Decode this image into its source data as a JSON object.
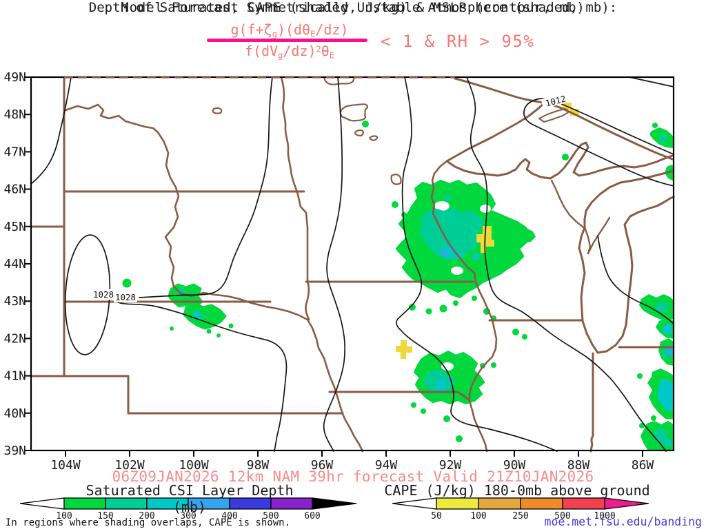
{
  "header": {
    "title": "Depth of Saturated, Symmetrically Unstable Atmosphere (shaded, mb):",
    "formula": {
      "numerator": {
        "p0": "g(f+ζ",
        "s0": "g",
        "p1": ")(dθ",
        "s1": "E",
        "p2": "/dz)"
      },
      "denominator": {
        "p0": "f(dV",
        "s0": "g",
        "p1": "/dz)",
        "sup": "2",
        "p2": "θ",
        "s1": "E"
      },
      "condition": "< 1 & RH > 95%"
    },
    "subtitle": "Model Forecast CAPE (shaded, J/kg) & MSLP (contour, mb)"
  },
  "map": {
    "lat_labels": [
      "49N",
      "48N",
      "47N",
      "46N",
      "45N",
      "44N",
      "43N",
      "42N",
      "41N",
      "40N",
      "39N"
    ],
    "lon_labels": [
      "104W",
      "102W",
      "100W",
      "98W",
      "96W",
      "94W",
      "92W",
      "90W",
      "88W",
      "86W"
    ],
    "contour_labels": [
      {
        "text": "1028"
      },
      {
        "text": "1028"
      },
      {
        "text": "1012"
      }
    ]
  },
  "legend": {
    "csi": {
      "title": "Saturated CSI Layer Depth (mb)",
      "tick_labels": [
        "100",
        "150",
        "200",
        "300",
        "400",
        "500",
        "600"
      ],
      "colors": [
        "#00D83E",
        "#00CC96",
        "#00C8C8",
        "#35A4EF",
        "#3A3ADF",
        "#8823CC"
      ],
      "end_arrow_color": "#000000"
    },
    "cape": {
      "title": "CAPE (J/kg) 180-0mb above ground",
      "tick_labels": [
        "50",
        "100",
        "250",
        "500",
        "1000"
      ],
      "colors": [
        "#EDE93F",
        "#E3A93C",
        "#EE8A28",
        "#F2414E"
      ],
      "end_arrow_color": "#EE1C8C"
    }
  },
  "footer": {
    "forecast": "06Z09JAN2026 12km NAM 39hr forecast Valid 21Z10JAN2026",
    "note": "In regions where shading overlaps, CAPE is shown.",
    "credit": "moe.met.fsu.edu/banding"
  },
  "colors": {
    "formula_red": "#F67872",
    "fraction_bar_pink": "#FF0E8C",
    "forecast_red": "#FB8A8A",
    "credit_blue": "#4A3BDB",
    "state_border_brown": "#8A5B45",
    "contour_black": "#151515",
    "cape_shading_yellow": "#EDD93A"
  }
}
